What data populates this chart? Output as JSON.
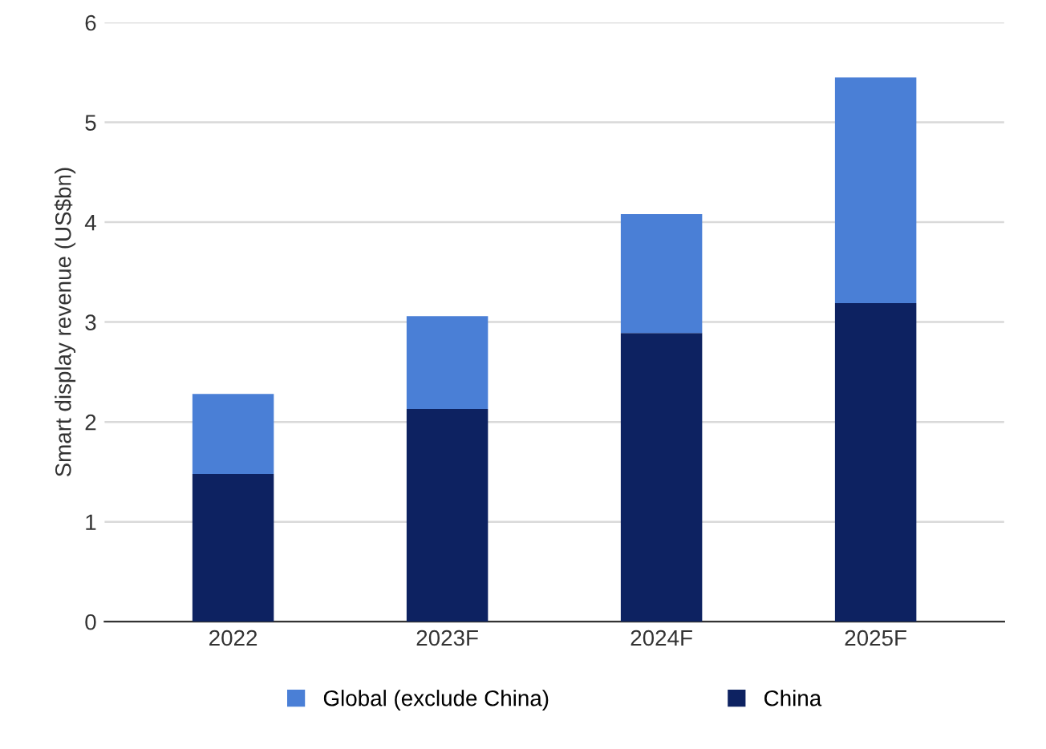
{
  "chart_data": {
    "type": "bar",
    "stacked": true,
    "ylabel": "Smart display revenue (US$bn)",
    "categories": [
      "2022",
      "2023F",
      "2024F",
      "2025F"
    ],
    "series": [
      {
        "name": "China",
        "color": "#0d2261",
        "values": [
          1.48,
          2.13,
          2.89,
          3.19
        ]
      },
      {
        "name": "Global (exclude China)",
        "color": "#4a7fd6",
        "values": [
          0.8,
          0.93,
          1.19,
          2.26
        ]
      }
    ],
    "ylim": [
      0,
      6
    ],
    "yticks": [
      0,
      1,
      2,
      3,
      4,
      5,
      6
    ],
    "grid": "y",
    "legend": "bottom"
  }
}
